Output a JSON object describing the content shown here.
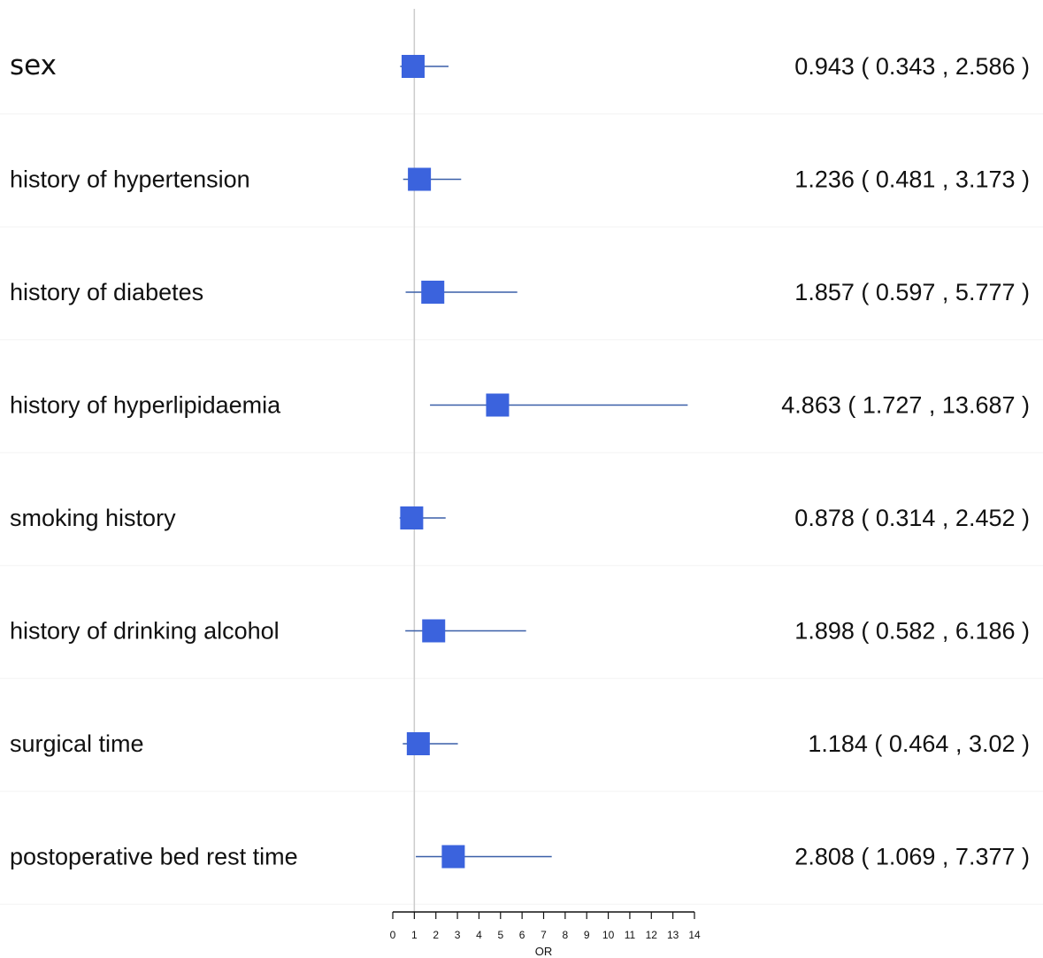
{
  "chart_data": {
    "type": "forest",
    "reference_line": 1,
    "xlabel": "OR",
    "xlim": [
      0,
      14
    ],
    "xticks": [
      0,
      1,
      2,
      3,
      4,
      5,
      6,
      7,
      8,
      9,
      10,
      11,
      12,
      13,
      14
    ],
    "marker_color": "#3B63DD",
    "line_color": "#3A5FA8",
    "reference_line_color": "#CCCCCC",
    "rows": [
      {
        "label": "sex",
        "or": 0.943,
        "lower": 0.343,
        "upper": 2.586,
        "ci_text": "0.943 ( 0.343 , 2.586 )"
      },
      {
        "label": "history of hypertension",
        "or": 1.236,
        "lower": 0.481,
        "upper": 3.173,
        "ci_text": "1.236 ( 0.481 , 3.173 )"
      },
      {
        "label": "history of diabetes",
        "or": 1.857,
        "lower": 0.597,
        "upper": 5.777,
        "ci_text": "1.857 ( 0.597 , 5.777 )"
      },
      {
        "label": "history of hyperlipidaemia",
        "or": 4.863,
        "lower": 1.727,
        "upper": 13.687,
        "ci_text": "4.863 ( 1.727 , 13.687 )"
      },
      {
        "label": "smoking history",
        "or": 0.878,
        "lower": 0.314,
        "upper": 2.452,
        "ci_text": "0.878 ( 0.314 , 2.452 )"
      },
      {
        "label": "history of drinking alcohol",
        "or": 1.898,
        "lower": 0.582,
        "upper": 6.186,
        "ci_text": "1.898 ( 0.582 , 6.186 )"
      },
      {
        "label": "surgical time",
        "or": 1.184,
        "lower": 0.464,
        "upper": 3.02,
        "ci_text": "1.184 ( 0.464 , 3.02 )"
      },
      {
        "label": "postoperative bed rest time",
        "or": 2.808,
        "lower": 1.069,
        "upper": 7.377,
        "ci_text": "2.808 ( 1.069 , 7.377 )"
      }
    ]
  }
}
